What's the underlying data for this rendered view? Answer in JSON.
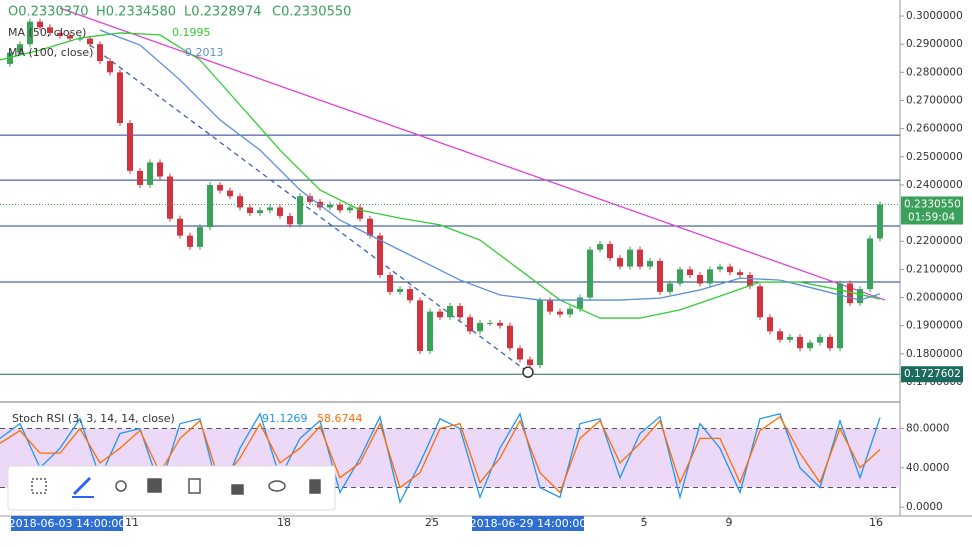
{
  "chart_data": [
    {
      "type": "line",
      "ohlc_labels": [
        "O0.2330370",
        "H0.2334580",
        "L0.2328974",
        "C0.2330550"
      ],
      "x": [
        0,
        1,
        2,
        3,
        4,
        5,
        6,
        7,
        8,
        9,
        10,
        11,
        12,
        13,
        14,
        15,
        16,
        17,
        18,
        19,
        20,
        21,
        22,
        23,
        24,
        25,
        26,
        27,
        28,
        29,
        30,
        31,
        32,
        33,
        34,
        35,
        36,
        37,
        38,
        39,
        40,
        41,
        42,
        43,
        44,
        45,
        46,
        47,
        48,
        49,
        50,
        51,
        52,
        53,
        54,
        55,
        56,
        57,
        58,
        59,
        60,
        61,
        62,
        63,
        64,
        65,
        66,
        67,
        68,
        69,
        70,
        71,
        72,
        73,
        74,
        75,
        76,
        77,
        78,
        79,
        80,
        81,
        82,
        83,
        84,
        85,
        86,
        87,
        88
      ],
      "values": [
        0.283,
        0.287,
        0.29,
        0.298,
        0.296,
        0.294,
        0.293,
        0.292,
        0.292,
        0.29,
        0.284,
        0.28,
        0.262,
        0.245,
        0.24,
        0.248,
        0.243,
        0.228,
        0.222,
        0.218,
        0.225,
        0.24,
        0.238,
        0.236,
        0.232,
        0.23,
        0.231,
        0.232,
        0.229,
        0.226,
        0.236,
        0.234,
        0.232,
        0.233,
        0.231,
        0.232,
        0.228,
        0.222,
        0.208,
        0.202,
        0.203,
        0.199,
        0.181,
        0.195,
        0.193,
        0.197,
        0.193,
        0.188,
        0.191,
        0.191,
        0.19,
        0.182,
        0.178,
        0.176,
        0.199,
        0.195,
        0.194,
        0.196,
        0.2,
        0.217,
        0.219,
        0.214,
        0.211,
        0.217,
        0.211,
        0.213,
        0.202,
        0.205,
        0.21,
        0.208,
        0.205,
        0.21,
        0.211,
        0.209,
        0.208,
        0.204,
        0.193,
        0.188,
        0.185,
        0.186,
        0.182,
        0.184,
        0.186,
        0.182,
        0.205,
        0.198,
        0.203,
        0.221,
        0.233055
      ],
      "up_color": "#3aa05a",
      "down_color": "#d0343f",
      "series": [
        {
          "name": "MA (50, close)",
          "color": "#33cc33",
          "x": [
            0,
            4,
            8,
            12,
            16,
            20,
            24,
            28,
            32,
            36,
            40,
            44,
            48,
            52,
            56,
            60,
            64,
            68,
            72,
            76,
            80,
            84,
            88
          ],
          "values": [
            0.2844,
            0.2879,
            0.2922,
            0.294,
            0.2933,
            0.2844,
            0.2684,
            0.2524,
            0.2382,
            0.2311,
            0.2282,
            0.2258,
            0.2204,
            0.2098,
            0.1991,
            0.1927,
            0.1927,
            0.1956,
            0.2005,
            0.2055,
            0.2055,
            0.2027,
            0.1995
          ]
        },
        {
          "name": "MA (100, close)",
          "color": "#5b8fd4",
          "x": [
            10,
            14,
            18,
            22,
            26,
            30,
            34,
            38,
            42,
            46,
            50,
            54,
            58,
            62,
            66,
            70,
            74,
            78,
            82,
            86,
            88
          ],
          "values": [
            0.295,
            0.2897,
            0.2773,
            0.2631,
            0.2524,
            0.2382,
            0.2275,
            0.2204,
            0.2133,
            0.2062,
            0.2009,
            0.1991,
            0.1991,
            0.1991,
            0.1998,
            0.2027,
            0.2069,
            0.2062,
            0.2027,
            0.1991,
            0.2013
          ]
        }
      ],
      "hlines": [
        {
          "value": 0.2577,
          "color": "#1d3f8f"
        },
        {
          "value": 0.2417,
          "color": "#1d3f8f"
        },
        {
          "value": 0.2254,
          "color": "#1d3f8f"
        },
        {
          "value": 0.2055,
          "color": "#1d3f8f"
        },
        {
          "value": 0.1727602,
          "color": "#1d6b5e"
        }
      ],
      "trendlines": [
        {
          "x": [
            6,
            88.5
          ],
          "values": [
            0.3028,
            0.1991
          ],
          "color": "#e040d8"
        },
        {
          "x": [
            9,
            52.8
          ],
          "values": [
            0.2897,
            0.1735
          ],
          "color": "#3a62b0",
          "dashed": true
        }
      ],
      "price_label": {
        "value": 0.233055,
        "label": "0.2330550"
      },
      "countdown": "01:59:04",
      "xlim": [
        0,
        90
      ],
      "ylim": [
        0.1636,
        0.3057
      ],
      "yticks": [
        {
          "value": 0.17,
          "label": "0.1700000"
        },
        {
          "value": 0.18,
          "label": "0.1800000"
        },
        {
          "value": 0.19,
          "label": "0.1900000"
        },
        {
          "value": 0.2,
          "label": "0.2000000"
        },
        {
          "value": 0.21,
          "label": "0.2100000"
        },
        {
          "value": 0.22,
          "label": "0.2200000"
        },
        {
          "value": 0.23,
          "label": "0.2300000"
        },
        {
          "value": 0.24,
          "label": "0.2400000"
        },
        {
          "value": 0.25,
          "label": "0.2500000"
        },
        {
          "value": 0.26,
          "label": "0.2600000"
        },
        {
          "value": 0.27,
          "label": "0.2700000"
        },
        {
          "value": 0.28,
          "label": "0.2800000"
        },
        {
          "value": 0.29,
          "label": "0.2900000"
        },
        {
          "value": 0.3,
          "label": "0.3000000"
        }
      ]
    },
    {
      "type": "line",
      "title": "Stoch RSI (3, 3, 14, 14, close)",
      "x": [
        0,
        2,
        4,
        6,
        8,
        10,
        12,
        14,
        16,
        18,
        20,
        22,
        24,
        26,
        28,
        30,
        32,
        34,
        36,
        38,
        40,
        42,
        44,
        46,
        48,
        50,
        52,
        54,
        56,
        58,
        60,
        62,
        64,
        66,
        68,
        70,
        72,
        74,
        76,
        78,
        80,
        82,
        84,
        86,
        88
      ],
      "series": [
        {
          "color": "#2196f3",
          "values": [
            70,
            85,
            40,
            60,
            90,
            30,
            75,
            80,
            20,
            85,
            90,
            10,
            60,
            95,
            30,
            70,
            88,
            15,
            50,
            92,
            5,
            45,
            90,
            80,
            10,
            60,
            95,
            20,
            10,
            85,
            90,
            30,
            75,
            92,
            10,
            85,
            60,
            15,
            90,
            95,
            40,
            20,
            88,
            30,
            91.1269
          ]
        },
        {
          "color": "#ff6d00",
          "values": [
            65,
            78,
            55,
            55,
            80,
            45,
            60,
            78,
            35,
            70,
            88,
            25,
            50,
            85,
            45,
            60,
            82,
            30,
            45,
            85,
            20,
            35,
            80,
            85,
            25,
            50,
            88,
            35,
            15,
            70,
            88,
            45,
            65,
            88,
            25,
            70,
            70,
            25,
            78,
            92,
            55,
            25,
            80,
            40,
            58.6744
          ]
        }
      ],
      "band": [
        20,
        80
      ],
      "band_color": "#e6cff5",
      "xlim": [
        0,
        90
      ],
      "ylim": [
        -9,
        105
      ],
      "yticks": [
        {
          "value": 0,
          "label": "0.0000"
        },
        {
          "value": 40,
          "label": "40.0000"
        },
        {
          "value": 80,
          "label": "80.0000"
        }
      ],
      "xticks": [
        {
          "value": 13.2,
          "label": "11"
        },
        {
          "value": 28.4,
          "label": "18"
        },
        {
          "value": 43.2,
          "label": "25"
        },
        {
          "value": 64.4,
          "label": "5"
        },
        {
          "value": 72.9,
          "label": "9"
        },
        {
          "value": 87.6,
          "label": "16"
        }
      ],
      "xmarkers": [
        {
          "value": 6.7,
          "label": "2018-06-03 14:00:00"
        },
        {
          "value": 52.8,
          "label": "2018-06-29 14:00:00"
        }
      ]
    }
  ]
}
